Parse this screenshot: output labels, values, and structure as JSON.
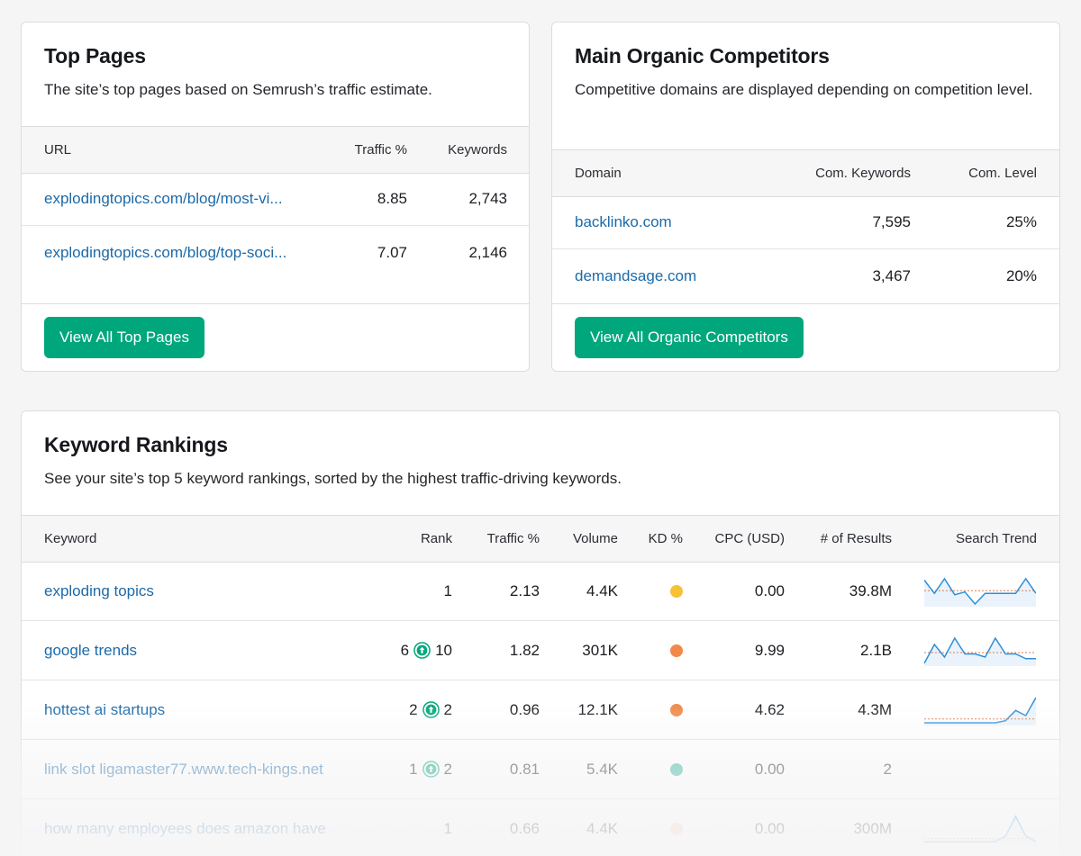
{
  "top_pages": {
    "title": "Top Pages",
    "description": "The site’s top pages based on Semrush’s traffic estimate.",
    "columns": [
      "URL",
      "Traffic %",
      "Keywords"
    ],
    "rows": [
      {
        "url": "explodingtopics.com/blog/most-vi...",
        "traffic": "8.85",
        "keywords": "2,743"
      },
      {
        "url": "explodingtopics.com/blog/top-soci...",
        "traffic": "7.07",
        "keywords": "2,146"
      }
    ],
    "button": "View All Top Pages"
  },
  "competitors": {
    "title": "Main Organic Competitors",
    "description": "Competitive domains are displayed depending on competition level.",
    "columns": [
      "Domain",
      "Com. Keywords",
      "Com. Level"
    ],
    "rows": [
      {
        "domain": "backlinko.com",
        "keywords": "7,595",
        "level": "25%"
      },
      {
        "domain": "demandsage.com",
        "keywords": "3,467",
        "level": "20%"
      }
    ],
    "button": "View All Organic Competitors"
  },
  "keyword_rankings": {
    "title": "Keyword Rankings",
    "description": "See your site’s top 5 keyword rankings, sorted by the highest traffic-driving keywords.",
    "columns": [
      "Keyword",
      "Rank",
      "Traffic %",
      "Volume",
      "KD %",
      "CPC (USD)",
      "# of Results",
      "Search Trend"
    ],
    "rows": [
      {
        "keyword": "exploding topics",
        "rank_prev": "",
        "rank": "1",
        "traffic": "2.13",
        "volume": "4.4K",
        "kd_color": "#f5c235",
        "cpc": "0.00",
        "results": "39.8M",
        "trend": [
          0.8,
          0.3,
          0.85,
          0.25,
          0.35,
          -0.1,
          0.3,
          0.3,
          0.3,
          0.3,
          0.85,
          0.3
        ]
      },
      {
        "keyword": "google trends",
        "rank_prev": "6",
        "rank": "10",
        "traffic": "1.82",
        "volume": "301K",
        "kd_color": "#f0894a",
        "cpc": "9.99",
        "results": "2.1B",
        "trend": [
          0.0,
          0.6,
          0.2,
          0.8,
          0.3,
          0.3,
          0.2,
          0.8,
          0.3,
          0.3,
          0.15,
          0.15
        ]
      },
      {
        "keyword": "hottest ai startups",
        "rank_prev": "2",
        "rank": "2",
        "traffic": "0.96",
        "volume": "12.1K",
        "kd_color": "#f0894a",
        "cpc": "4.62",
        "results": "4.3M",
        "trend": [
          0.02,
          0.02,
          0.02,
          0.02,
          0.02,
          0.02,
          0.02,
          0.02,
          0.1,
          0.5,
          0.3,
          1.0
        ]
      },
      {
        "keyword": "link slot ligamaster77.www.tech-kings.net",
        "rank_prev": "1",
        "rank": "2",
        "traffic": "0.81",
        "volume": "5.4K",
        "kd_color": "#2bb39b",
        "cpc": "0.00",
        "results": "2",
        "trend": []
      },
      {
        "keyword": "how many employees does amazon have",
        "rank_prev": "",
        "rank": "1",
        "traffic": "0.66",
        "volume": "4.4K",
        "kd_color": "#f5c8a8",
        "cpc": "0.00",
        "results": "300M",
        "trend": [
          0.1,
          0.1,
          0.1,
          0.1,
          0.1,
          0.1,
          0.1,
          0.1,
          0.3,
          1.0,
          0.3,
          0.1
        ]
      }
    ]
  },
  "colors": {
    "accent": "#00a77c",
    "link": "#1c6aa8",
    "trend_line": "#2f8fd6"
  }
}
